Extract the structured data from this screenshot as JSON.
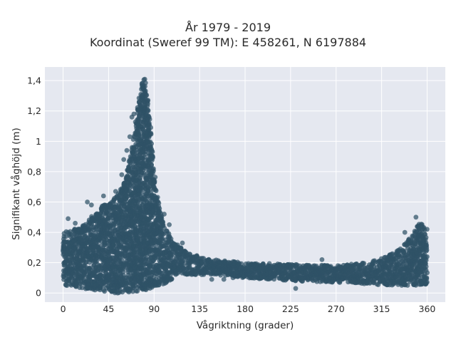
{
  "chart_data": {
    "type": "scatter",
    "title_line1": "År 1979 - 2019",
    "title_line2": "Koordinat (Sweref 99 TM): E 458261, N 6197884",
    "xlabel": "Vågriktning (grader)",
    "ylabel": "Signifikant våghöjd (m)",
    "xlim": [
      -18,
      378
    ],
    "ylim": [
      -0.06,
      1.49
    ],
    "xticks": [
      0,
      45,
      90,
      135,
      180,
      225,
      270,
      315,
      360
    ],
    "xtick_labels": [
      "0",
      "45",
      "90",
      "135",
      "180",
      "225",
      "270",
      "315",
      "360"
    ],
    "yticks": [
      0,
      0.2,
      0.4,
      0.6,
      0.8,
      1,
      1.2,
      1.4
    ],
    "ytick_labels": [
      "0",
      "0,2",
      "0,4",
      "0,6",
      "0,8",
      "1",
      "1,2",
      "1,4"
    ],
    "grid": true,
    "marker_color": "#2f5267",
    "background_color": "#e5e8f0",
    "envelope": {
      "direction_deg": [
        0,
        10,
        20,
        30,
        40,
        50,
        60,
        65,
        70,
        75,
        78,
        80,
        82,
        85,
        88,
        90,
        95,
        100,
        110,
        120,
        135,
        150,
        180,
        225,
        270,
        300,
        320,
        335,
        345,
        350,
        355,
        360
      ],
      "max_height_m": [
        0.4,
        0.42,
        0.45,
        0.52,
        0.58,
        0.62,
        0.72,
        0.85,
        1.05,
        1.28,
        1.39,
        1.42,
        1.38,
        1.22,
        0.98,
        0.82,
        0.58,
        0.44,
        0.34,
        0.28,
        0.24,
        0.22,
        0.2,
        0.19,
        0.18,
        0.2,
        0.24,
        0.3,
        0.38,
        0.45,
        0.46,
        0.42
      ],
      "min_height_m": [
        0.05,
        0.04,
        0.03,
        0.02,
        0.01,
        0.0,
        0.0,
        0.0,
        0.01,
        0.01,
        0.02,
        0.02,
        0.02,
        0.02,
        0.03,
        0.04,
        0.05,
        0.06,
        0.1,
        0.12,
        0.12,
        0.12,
        0.1,
        0.08,
        0.07,
        0.06,
        0.05,
        0.05,
        0.05,
        0.05,
        0.05,
        0.06
      ]
    },
    "outliers": [
      {
        "x": 5,
        "y": 0.49
      },
      {
        "x": 12,
        "y": 0.46
      },
      {
        "x": 24,
        "y": 0.6
      },
      {
        "x": 28,
        "y": 0.58
      },
      {
        "x": 40,
        "y": 0.64
      },
      {
        "x": 52,
        "y": 0.67
      },
      {
        "x": 58,
        "y": 0.78
      },
      {
        "x": 60,
        "y": 0.88
      },
      {
        "x": 63,
        "y": 0.94
      },
      {
        "x": 66,
        "y": 1.03
      },
      {
        "x": 68,
        "y": 1.16
      },
      {
        "x": 70,
        "y": 1.18
      },
      {
        "x": 100,
        "y": 0.52
      },
      {
        "x": 105,
        "y": 0.45
      },
      {
        "x": 118,
        "y": 0.33
      },
      {
        "x": 147,
        "y": 0.09
      },
      {
        "x": 159,
        "y": 0.09
      },
      {
        "x": 168,
        "y": 0.1
      },
      {
        "x": 205,
        "y": 0.1
      },
      {
        "x": 230,
        "y": 0.03
      },
      {
        "x": 256,
        "y": 0.22
      },
      {
        "x": 300,
        "y": 0.08
      },
      {
        "x": 338,
        "y": 0.4
      },
      {
        "x": 349,
        "y": 0.5
      }
    ]
  }
}
